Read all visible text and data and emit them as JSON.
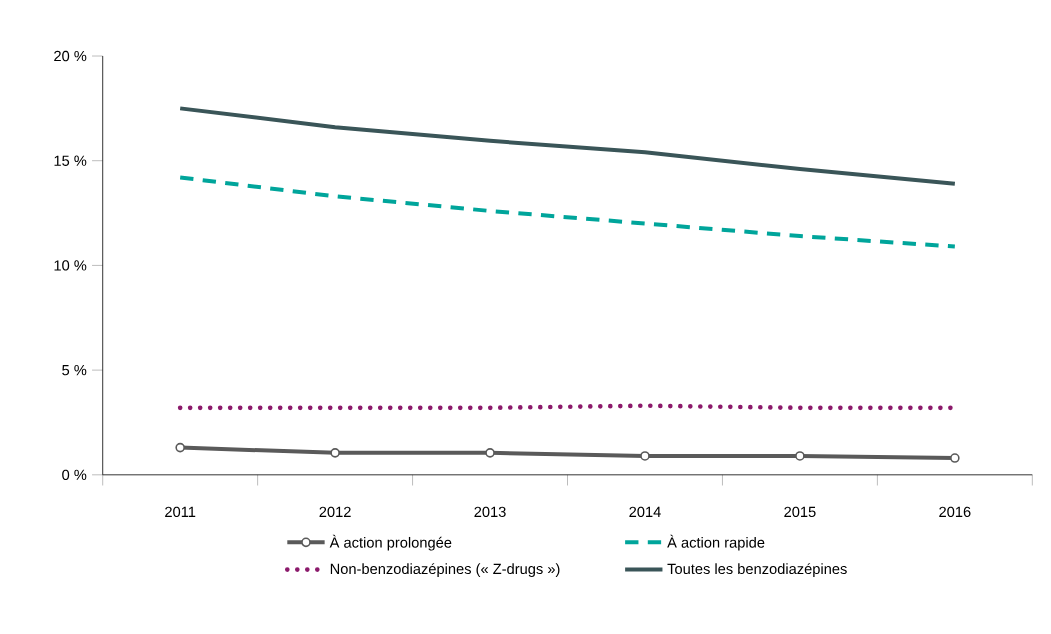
{
  "chart_data": {
    "type": "line",
    "categories": [
      "2011",
      "2012",
      "2013",
      "2014",
      "2015",
      "2016"
    ],
    "series": [
      {
        "name": "À action prolongée",
        "color": "#5a5a5a",
        "marker": "circle",
        "line_style": "solid",
        "values": [
          1.3,
          1.05,
          1.05,
          0.9,
          0.9,
          0.8
        ]
      },
      {
        "name": "À action rapide",
        "color": "#00a59b",
        "line_style": "dashed",
        "values": [
          14.2,
          13.3,
          12.6,
          12.0,
          11.4,
          10.9
        ]
      },
      {
        "name": "Non-benzodiazépines (« Z-drugs »)",
        "color": "#8b1a6b",
        "line_style": "dotted",
        "values": [
          3.2,
          3.2,
          3.2,
          3.3,
          3.2,
          3.2
        ]
      },
      {
        "name": "Toutes les benzodiazépines",
        "color": "#3a5558",
        "line_style": "solid",
        "values": [
          17.5,
          16.6,
          15.95,
          15.4,
          14.6,
          13.9
        ]
      }
    ],
    "ylim": [
      0,
      20
    ],
    "yticks": [
      {
        "value": 0,
        "label": "0 %"
      },
      {
        "value": 5,
        "label": "5 %"
      },
      {
        "value": 10,
        "label": "10 %"
      },
      {
        "value": 15,
        "label": "15 %"
      },
      {
        "value": 20,
        "label": "20 %"
      }
    ],
    "grid": false,
    "legend": "bottom"
  }
}
